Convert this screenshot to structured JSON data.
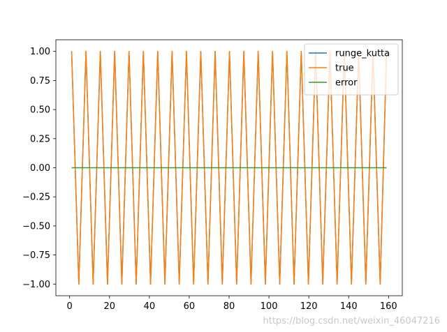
{
  "chart_data": {
    "type": "line",
    "title": "",
    "xlabel": "",
    "ylabel": "",
    "xlim": [
      -6.9,
      166.9
    ],
    "ylim": [
      -1.1,
      1.1
    ],
    "xticks": [
      0,
      20,
      40,
      60,
      80,
      100,
      120,
      140,
      160
    ],
    "xtick_labels": [
      "0",
      "20",
      "40",
      "60",
      "80",
      "100",
      "120",
      "140",
      "160"
    ],
    "yticks": [
      -1.0,
      -0.75,
      -0.5,
      -0.25,
      0.0,
      0.25,
      0.5,
      0.75,
      1.0
    ],
    "ytick_labels": [
      "−1.00",
      "−0.75",
      "−0.50",
      "−0.25",
      "0.00",
      "0.25",
      "0.50",
      "0.75",
      "1.00"
    ],
    "grid": false,
    "legend_position": "top-right",
    "x": [
      1.0,
      4.6,
      8.2,
      11.8,
      15.4,
      19.0,
      22.6,
      26.2,
      29.8,
      33.4,
      37.0,
      40.6,
      44.2,
      47.8,
      51.4,
      55.0,
      58.6,
      62.2,
      65.8,
      69.4,
      73.0,
      76.6,
      80.2,
      83.8,
      87.4,
      91.0,
      94.6,
      98.2,
      101.8,
      105.4,
      109.0,
      112.6,
      116.2,
      119.8,
      123.4,
      127.0,
      130.6,
      134.2,
      137.8,
      141.4,
      145.0,
      148.6,
      152.2,
      155.8,
      159.0
    ],
    "series": [
      {
        "name": "runge_kutta",
        "color": "#1f77b4",
        "values": [
          1,
          -1,
          1,
          -1,
          1,
          -1,
          1,
          -1,
          1,
          -1,
          1,
          -1,
          1,
          -1,
          1,
          -1,
          1,
          -1,
          1,
          -1,
          1,
          -1,
          1,
          -1,
          1,
          -1,
          1,
          -1,
          1,
          -1,
          1,
          -1,
          1,
          -1,
          1,
          -1,
          1,
          -1,
          1,
          -1,
          1,
          -1,
          1,
          -1,
          1
        ]
      },
      {
        "name": "true",
        "color": "#ff7f0e",
        "values": [
          1,
          -1,
          1,
          -1,
          1,
          -1,
          1,
          -1,
          1,
          -1,
          1,
          -1,
          1,
          -1,
          1,
          -1,
          1,
          -1,
          1,
          -1,
          1,
          -1,
          1,
          -1,
          1,
          -1,
          1,
          -1,
          1,
          -1,
          1,
          -1,
          1,
          -1,
          1,
          -1,
          1,
          -1,
          1,
          -1,
          1,
          -1,
          1,
          -1,
          1
        ]
      },
      {
        "name": "error",
        "color": "#2ca02c",
        "values": [
          0,
          0,
          0,
          0,
          0,
          0,
          0,
          0,
          0,
          0,
          0,
          0,
          0,
          0,
          0,
          0,
          0,
          0,
          0,
          0,
          0,
          0,
          0,
          0,
          0,
          0,
          0,
          0,
          0,
          0,
          0,
          0,
          0,
          0,
          0,
          0,
          0,
          0,
          0,
          0,
          0,
          0,
          0,
          0,
          0
        ]
      }
    ]
  },
  "watermark": "https://blog.csdn.net/weixin_46047216"
}
